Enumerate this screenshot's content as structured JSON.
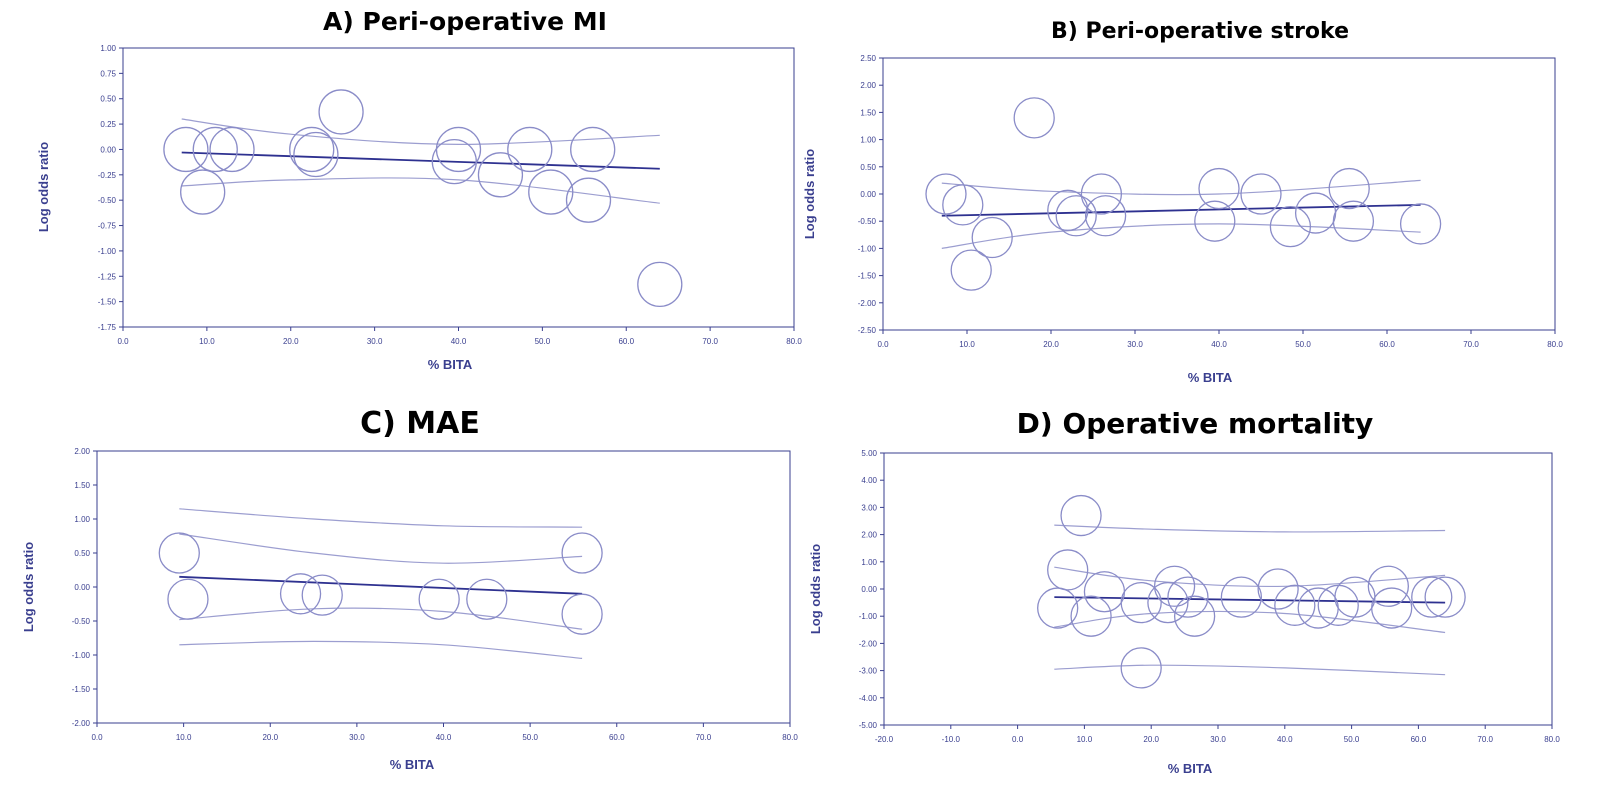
{
  "chart_data": [
    {
      "type": "scatter",
      "title": "A) Peri-operative MI",
      "xlabel": "% BITA",
      "ylabel": "Log odds ratio",
      "xlim": [
        0,
        80
      ],
      "ylim": [
        -1.75,
        1.0
      ],
      "x_ticks": [
        "0.0",
        "10.0",
        "20.0",
        "30.0",
        "40.0",
        "50.0",
        "60.0",
        "70.0",
        "80.0"
      ],
      "y_ticks": [
        "1.00",
        "0.75",
        "0.50",
        "0.25",
        "0.00",
        "-0.25",
        "-0.50",
        "-0.75",
        "-1.00",
        "-1.25",
        "-1.50",
        "-1.75"
      ],
      "points": [
        {
          "x": 7.5,
          "y": 0.0
        },
        {
          "x": 9.5,
          "y": -0.42
        },
        {
          "x": 11.0,
          "y": 0.0
        },
        {
          "x": 13.0,
          "y": 0.0
        },
        {
          "x": 22.5,
          "y": 0.0
        },
        {
          "x": 23.0,
          "y": -0.05
        },
        {
          "x": 26.0,
          "y": 0.37
        },
        {
          "x": 39.5,
          "y": -0.12
        },
        {
          "x": 40.0,
          "y": 0.0
        },
        {
          "x": 45.0,
          "y": -0.25
        },
        {
          "x": 48.5,
          "y": 0.0
        },
        {
          "x": 51.0,
          "y": -0.42
        },
        {
          "x": 55.5,
          "y": -0.5
        },
        {
          "x": 56.0,
          "y": 0.0
        },
        {
          "x": 64.0,
          "y": -1.33
        }
      ],
      "regression": {
        "x": [
          7.0,
          64.0
        ],
        "y": [
          -0.03,
          -0.19
        ]
      },
      "ci_upper": {
        "x": [
          7.0,
          20.0,
          40.0,
          64.0
        ],
        "y": [
          0.3,
          0.15,
          0.05,
          0.14
        ]
      },
      "ci_lower": {
        "x": [
          7.0,
          20.0,
          40.0,
          64.0
        ],
        "y": [
          -0.36,
          -0.3,
          -0.3,
          -0.53
        ]
      },
      "grid": false
    },
    {
      "type": "scatter",
      "title": "B) Peri-operative stroke",
      "xlabel": "% BITA",
      "ylabel": "Log odds ratio",
      "xlim": [
        0,
        80
      ],
      "ylim": [
        -2.5,
        2.5
      ],
      "x_ticks": [
        "0.0",
        "10.0",
        "20.0",
        "30.0",
        "40.0",
        "50.0",
        "60.0",
        "70.0",
        "80.0"
      ],
      "y_ticks": [
        "2.50",
        "2.00",
        "1.50",
        "1.00",
        "0.50",
        "0.00",
        "-0.50",
        "-1.00",
        "-1.50",
        "-2.00",
        "-2.50"
      ],
      "points": [
        {
          "x": 7.5,
          "y": 0.0
        },
        {
          "x": 9.5,
          "y": -0.2
        },
        {
          "x": 10.5,
          "y": -1.4
        },
        {
          "x": 13.0,
          "y": -0.8
        },
        {
          "x": 18.0,
          "y": 1.4
        },
        {
          "x": 22.0,
          "y": -0.3
        },
        {
          "x": 23.0,
          "y": -0.4
        },
        {
          "x": 26.0,
          "y": 0.0
        },
        {
          "x": 26.5,
          "y": -0.4
        },
        {
          "x": 39.5,
          "y": -0.5
        },
        {
          "x": 40.0,
          "y": 0.1
        },
        {
          "x": 45.0,
          "y": 0.0
        },
        {
          "x": 48.5,
          "y": -0.6
        },
        {
          "x": 51.5,
          "y": -0.35
        },
        {
          "x": 55.5,
          "y": 0.1
        },
        {
          "x": 56.0,
          "y": -0.5
        },
        {
          "x": 64.0,
          "y": -0.55
        }
      ],
      "regression": {
        "x": [
          7.0,
          64.0
        ],
        "y": [
          -0.4,
          -0.2
        ]
      },
      "ci_upper": {
        "x": [
          7.0,
          20.0,
          40.0,
          64.0
        ],
        "y": [
          0.2,
          0.05,
          0.0,
          0.25
        ]
      },
      "ci_lower": {
        "x": [
          7.0,
          20.0,
          40.0,
          64.0
        ],
        "y": [
          -1.0,
          -0.7,
          -0.55,
          -0.7
        ]
      },
      "grid": false
    },
    {
      "type": "scatter",
      "title": "C) MAE",
      "xlabel": "% BITA",
      "ylabel": "Log odds ratio",
      "xlim": [
        0,
        80
      ],
      "ylim": [
        -2.0,
        2.0
      ],
      "x_ticks": [
        "0.0",
        "10.0",
        "20.0",
        "30.0",
        "40.0",
        "50.0",
        "60.0",
        "70.0",
        "80.0"
      ],
      "y_ticks": [
        "2.00",
        "1.50",
        "1.00",
        "0.50",
        "0.00",
        "-0.50",
        "-1.00",
        "-1.50",
        "-2.00"
      ],
      "points": [
        {
          "x": 9.5,
          "y": 0.5
        },
        {
          "x": 10.5,
          "y": -0.18
        },
        {
          "x": 23.5,
          "y": -0.1
        },
        {
          "x": 26.0,
          "y": -0.12
        },
        {
          "x": 39.5,
          "y": -0.18
        },
        {
          "x": 45.0,
          "y": -0.18
        },
        {
          "x": 56.0,
          "y": 0.5
        },
        {
          "x": 56.0,
          "y": -0.4
        }
      ],
      "regression": {
        "x": [
          9.5,
          56.0
        ],
        "y": [
          0.15,
          -0.1
        ]
      },
      "ci_upper_outer": {
        "x": [
          9.5,
          25.0,
          40.0,
          56.0
        ],
        "y": [
          1.15,
          1.0,
          0.9,
          0.88
        ]
      },
      "ci_upper_inner": {
        "x": [
          9.5,
          25.0,
          40.0,
          56.0
        ],
        "y": [
          0.78,
          0.5,
          0.35,
          0.45
        ]
      },
      "ci_lower_inner": {
        "x": [
          9.5,
          25.0,
          40.0,
          56.0
        ],
        "y": [
          -0.48,
          -0.32,
          -0.36,
          -0.62
        ]
      },
      "ci_lower_outer": {
        "x": [
          9.5,
          25.0,
          40.0,
          56.0
        ],
        "y": [
          -0.85,
          -0.8,
          -0.85,
          -1.05
        ]
      },
      "grid": false
    },
    {
      "type": "scatter",
      "title": "D) Operative mortality",
      "xlabel": "% BITA",
      "ylabel": "Log odds ratio",
      "xlim": [
        -20,
        80
      ],
      "ylim": [
        -5.0,
        5.0
      ],
      "x_ticks": [
        "-20.0",
        "-10.0",
        "0.0",
        "10.0",
        "20.0",
        "30.0",
        "40.0",
        "50.0",
        "60.0",
        "70.0",
        "80.0"
      ],
      "y_ticks": [
        "5.00",
        "4.00",
        "3.00",
        "2.00",
        "1.00",
        "0.00",
        "-1.00",
        "-2.00",
        "-3.00",
        "-4.00",
        "-5.00"
      ],
      "points": [
        {
          "x": 6.0,
          "y": -0.7
        },
        {
          "x": 7.5,
          "y": 0.7
        },
        {
          "x": 9.5,
          "y": 2.7
        },
        {
          "x": 11.0,
          "y": -1.0
        },
        {
          "x": 13.0,
          "y": -0.1
        },
        {
          "x": 18.5,
          "y": -0.5
        },
        {
          "x": 18.5,
          "y": -2.9
        },
        {
          "x": 22.5,
          "y": -0.5
        },
        {
          "x": 23.5,
          "y": 0.1
        },
        {
          "x": 25.5,
          "y": -0.3
        },
        {
          "x": 26.5,
          "y": -1.0
        },
        {
          "x": 33.5,
          "y": -0.3
        },
        {
          "x": 39.0,
          "y": 0.0
        },
        {
          "x": 41.5,
          "y": -0.6
        },
        {
          "x": 45.0,
          "y": -0.7
        },
        {
          "x": 48.0,
          "y": -0.6
        },
        {
          "x": 50.5,
          "y": -0.3
        },
        {
          "x": 55.5,
          "y": 0.1
        },
        {
          "x": 56.0,
          "y": -0.7
        },
        {
          "x": 62.0,
          "y": -0.3
        },
        {
          "x": 64.0,
          "y": -0.3
        }
      ],
      "regression": {
        "x": [
          5.5,
          64.0
        ],
        "y": [
          -0.3,
          -0.5
        ]
      },
      "ci_upper_outer": {
        "x": [
          5.5,
          20.0,
          40.0,
          64.0
        ],
        "y": [
          2.35,
          2.2,
          2.1,
          2.15
        ]
      },
      "ci_upper_inner": {
        "x": [
          5.5,
          20.0,
          40.0,
          64.0
        ],
        "y": [
          0.8,
          0.3,
          0.1,
          0.5
        ]
      },
      "ci_lower_inner": {
        "x": [
          5.5,
          20.0,
          40.0,
          64.0
        ],
        "y": [
          -1.4,
          -0.9,
          -0.9,
          -1.6
        ]
      },
      "ci_lower_outer": {
        "x": [
          5.5,
          20.0,
          40.0,
          64.0
        ],
        "y": [
          -2.95,
          -2.8,
          -2.9,
          -3.15
        ]
      },
      "grid": false
    }
  ],
  "colors": {
    "axis": "#3a3f8f",
    "circle": "#8a8cc8",
    "regression": "#2e3190",
    "ci": "#9c9ed0"
  }
}
